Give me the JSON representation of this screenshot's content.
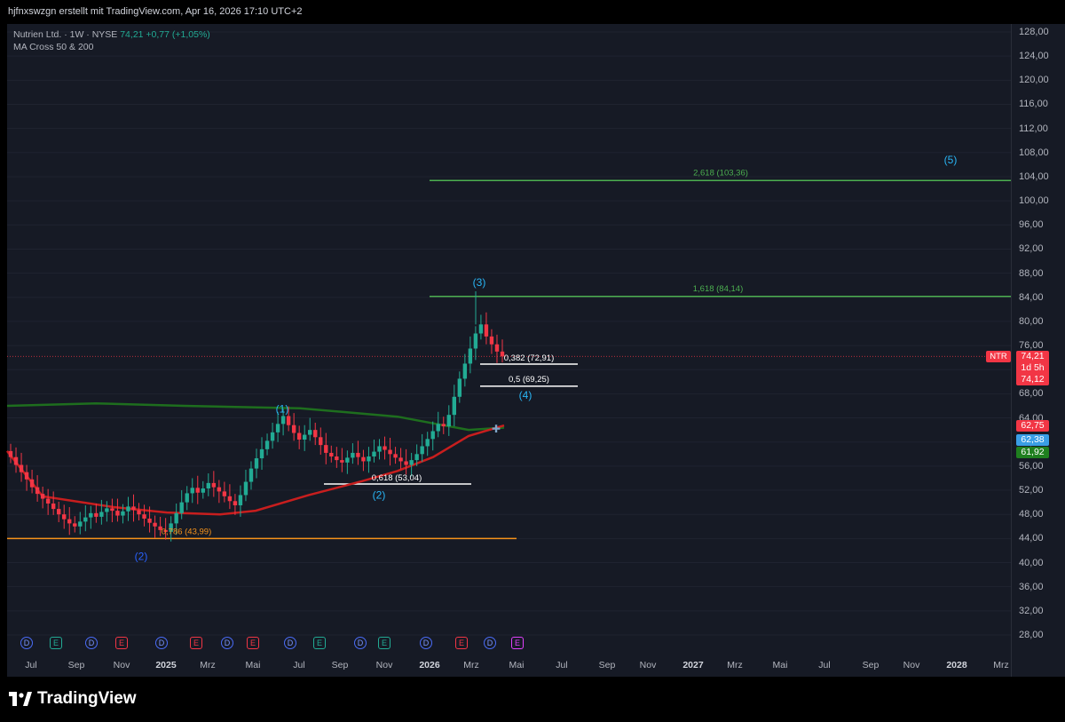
{
  "header": {
    "credit": "hjfnxswzgn erstellt mit TradingView.com, Apr 16, 2026 17:10 UTC+2"
  },
  "symbol": {
    "name": "Nutrien Ltd. · 1W · NYSE",
    "last": "74,21",
    "change": "+0,77 (+1,05%)"
  },
  "indicator": {
    "label": "MA Cross 50 & 200"
  },
  "colors": {
    "up": "#22ab94",
    "down": "#f23645",
    "ma_fast": "#c81e1e",
    "ma_slow": "#1e6e1e",
    "fib_green": "#4caf50",
    "fib_white": "#ffffff",
    "fib_orange": "#f7931a",
    "wave_blue": "#2962ff",
    "wave_cyan": "#29b6f6",
    "background": "#161a25"
  },
  "chart_data": {
    "type": "candlestick",
    "title": "Nutrien Ltd. · 1W · NYSE",
    "ylim": [
      28,
      128
    ],
    "y_ticks": [
      "128,00",
      "124,00",
      "120,00",
      "116,00",
      "112,00",
      "108,00",
      "104,00",
      "100,00",
      "96,00",
      "92,00",
      "88,00",
      "84,00",
      "80,00",
      "76,00",
      "72,00",
      "68,00",
      "64,00",
      "60,00",
      "56,00",
      "52,00",
      "48,00",
      "44,00",
      "40,00",
      "36,00",
      "32,00",
      "28,00"
    ],
    "x_ticks": [
      {
        "label": "Jul",
        "bold": false
      },
      {
        "label": "Sep",
        "bold": false
      },
      {
        "label": "Nov",
        "bold": false
      },
      {
        "label": "2025",
        "bold": true
      },
      {
        "label": "Mrz",
        "bold": false
      },
      {
        "label": "Mai",
        "bold": false
      },
      {
        "label": "Jul",
        "bold": false
      },
      {
        "label": "Sep",
        "bold": false
      },
      {
        "label": "Nov",
        "bold": false
      },
      {
        "label": "2026",
        "bold": true
      },
      {
        "label": "Mrz",
        "bold": false
      },
      {
        "label": "Mai",
        "bold": false
      },
      {
        "label": "Jul",
        "bold": false
      },
      {
        "label": "Sep",
        "bold": false
      },
      {
        "label": "Nov",
        "bold": false
      },
      {
        "label": "2027",
        "bold": true
      },
      {
        "label": "Mrz",
        "bold": false
      },
      {
        "label": "Mai",
        "bold": false
      },
      {
        "label": "Jul",
        "bold": false
      },
      {
        "label": "Sep",
        "bold": false
      },
      {
        "label": "Nov",
        "bold": false
      },
      {
        "label": "2028",
        "bold": true
      },
      {
        "label": "Mrz",
        "bold": false
      }
    ],
    "candles_close": [
      57.5,
      56.2,
      55.0,
      53.8,
      52.5,
      51.4,
      50.6,
      49.8,
      48.9,
      48.0,
      47.2,
      46.5,
      46.0,
      46.8,
      47.5,
      48.2,
      47.6,
      48.4,
      49.0,
      48.6,
      47.8,
      48.5,
      49.3,
      48.7,
      48.0,
      47.3,
      46.6,
      46.0,
      45.4,
      45.1,
      46.5,
      48.2,
      50.0,
      51.5,
      52.4,
      51.6,
      52.3,
      53.2,
      52.5,
      51.8,
      51.0,
      50.2,
      49.5,
      51.2,
      53.4,
      55.6,
      57.3,
      58.8,
      60.2,
      61.6,
      63.0,
      64.3,
      62.8,
      61.5,
      60.4,
      61.2,
      62.0,
      60.8,
      59.5,
      58.2,
      57.6,
      57.0,
      56.6,
      57.4,
      58.2,
      57.5,
      56.8,
      57.6,
      58.4,
      59.3,
      58.7,
      58.0,
      57.4,
      56.8,
      56.2,
      57.0,
      58.0,
      59.3,
      60.5,
      61.8,
      63.0,
      62.6,
      64.5,
      67.5,
      70.5,
      73.0,
      75.5,
      78.0,
      79.5,
      77.5,
      76.2,
      75.0,
      74.2
    ],
    "candles_trend": [
      0,
      0,
      0,
      0,
      0,
      0,
      0,
      0,
      0,
      0,
      0,
      0,
      0,
      1,
      1,
      1,
      0,
      1,
      1,
      0,
      0,
      1,
      1,
      0,
      0,
      0,
      0,
      0,
      0,
      0,
      1,
      1,
      1,
      1,
      1,
      0,
      1,
      1,
      0,
      0,
      0,
      0,
      0,
      1,
      1,
      1,
      1,
      1,
      1,
      1,
      1,
      1,
      0,
      0,
      0,
      1,
      1,
      0,
      0,
      0,
      0,
      0,
      0,
      1,
      1,
      0,
      0,
      1,
      1,
      1,
      0,
      0,
      0,
      0,
      0,
      1,
      1,
      1,
      1,
      1,
      1,
      0,
      1,
      1,
      1,
      1,
      1,
      1,
      1,
      0,
      0,
      0,
      1
    ],
    "ma_fast": [
      [
        0,
        58.5
      ],
      [
        40,
        51.0
      ],
      [
        120,
        49.2
      ],
      [
        180,
        48.3
      ],
      [
        240,
        48.0
      ],
      [
        280,
        48.6
      ],
      [
        340,
        51.2
      ],
      [
        400,
        53.5
      ],
      [
        440,
        55.2
      ],
      [
        480,
        57.5
      ],
      [
        520,
        61.0
      ],
      [
        560,
        62.75
      ]
    ],
    "ma_slow": [
      [
        0,
        66.0
      ],
      [
        100,
        66.4
      ],
      [
        200,
        66.0
      ],
      [
        330,
        65.6
      ],
      [
        440,
        64.2
      ],
      [
        520,
        62.0
      ],
      [
        560,
        62.38
      ]
    ],
    "fib_levels": [
      {
        "label": "2,618 (103,36)",
        "value": 103.36,
        "color": "green"
      },
      {
        "label": "1,618 (84,14)",
        "value": 84.14,
        "color": "green"
      },
      {
        "label": "0,382 (72,91)",
        "value": 72.91,
        "color": "white"
      },
      {
        "label": "0,5 (69,25)",
        "value": 69.25,
        "color": "white"
      },
      {
        "label": "0,618 (53,04)",
        "value": 53.04,
        "color": "white"
      },
      {
        "label": "0,786 (43,99)",
        "value": 43.99,
        "color": "orange"
      }
    ],
    "waves": [
      {
        "label": "(1)",
        "value": 65.5,
        "color": "cyan"
      },
      {
        "label": "(2)",
        "value": 51.2,
        "color": "cyan"
      },
      {
        "label": "(3)",
        "value": 86.5,
        "color": "cyan"
      },
      {
        "label": "(4)",
        "value": 67.8,
        "color": "cyan"
      },
      {
        "label": "(5)",
        "value": 106.8,
        "color": "cyan"
      },
      {
        "label": "(2)",
        "value": 41.0,
        "color": "blue"
      }
    ],
    "price_badges": [
      {
        "label": "NTR",
        "value": "74,21",
        "extra": "1d 5h",
        "extra2": "74,12",
        "color": "red"
      },
      {
        "label": "",
        "value": "62,75",
        "color": "red"
      },
      {
        "label": "",
        "value": "62,38",
        "color": "blue"
      },
      {
        "label": "",
        "value": "61,92",
        "color": "green"
      }
    ],
    "events": [
      {
        "type": "D"
      },
      {
        "type": "E",
        "color": "green"
      },
      {
        "type": "D"
      },
      {
        "type": "E",
        "color": "red"
      },
      {
        "type": "D"
      },
      {
        "type": "E",
        "color": "red"
      },
      {
        "type": "D"
      },
      {
        "type": "E",
        "color": "red"
      },
      {
        "type": "D"
      },
      {
        "type": "E",
        "color": "green"
      },
      {
        "type": "D"
      },
      {
        "type": "E",
        "color": "green"
      },
      {
        "type": "D"
      },
      {
        "type": "E",
        "color": "red"
      },
      {
        "type": "D"
      },
      {
        "type": "E",
        "color": "pink"
      }
    ]
  },
  "footer": {
    "brand": "TradingView"
  }
}
